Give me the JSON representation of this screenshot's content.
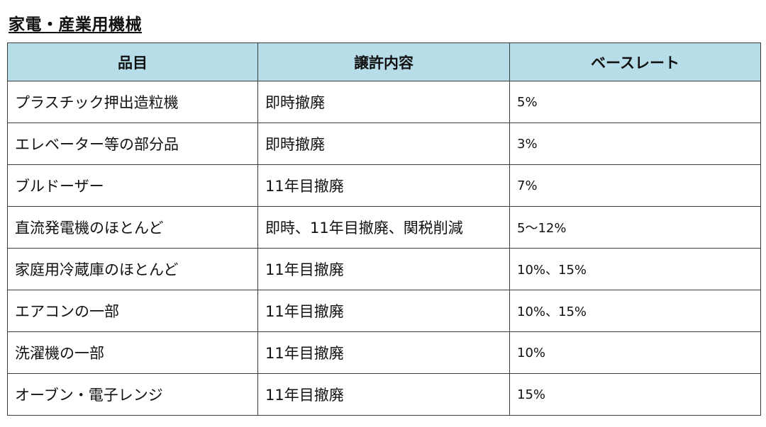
{
  "title": "家電・産業用機械",
  "table": {
    "headers": [
      "品目",
      "譲許内容",
      "ベースレート"
    ],
    "rows": [
      [
        "プラスチック押出造粒機",
        "即時撤廃",
        "5%"
      ],
      [
        "エレベーター等の部分品",
        "即時撤廃",
        "3%"
      ],
      [
        "ブルドーザー",
        "11年目撤廃",
        "7%"
      ],
      [
        "直流発電機のほとんど",
        "即時、11年目撤廃、関税削減",
        "5～12%"
      ],
      [
        "家庭用冷蔵庫のほとんど",
        "11年目撤廃",
        "10%、15%"
      ],
      [
        "エアコンの一部",
        "11年目撤廃",
        "10%、15%"
      ],
      [
        "洗濯機の一部",
        "11年目撤廃",
        "10%"
      ],
      [
        "オーブン・電子レンジ",
        "11年目撤廃",
        "15%"
      ]
    ]
  }
}
